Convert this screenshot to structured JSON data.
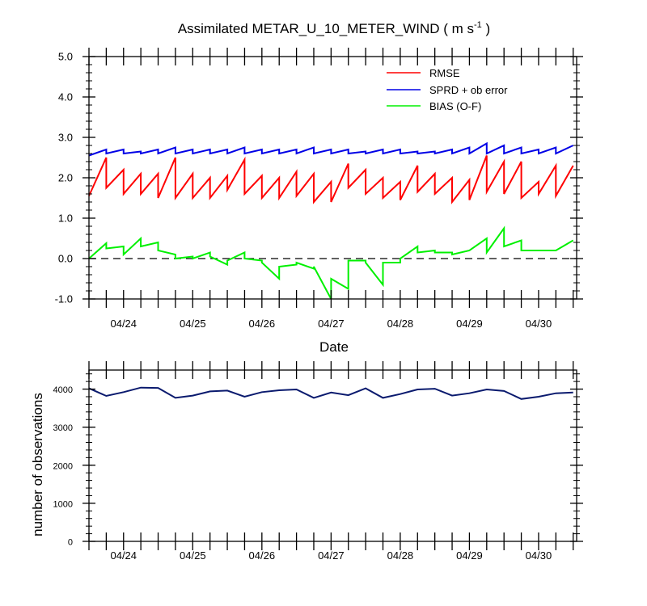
{
  "colors": {
    "rmse": "#ff0000",
    "spread": "#0000e6",
    "bias": "#00f000",
    "count": "#0a1a6e",
    "zero": "#000000"
  },
  "title": {
    "main": "Assimilated METAR_U_10_METER_WIND ( m s",
    "sup": "-1",
    "tail": " )"
  },
  "top_plot": {
    "xlabel": "Date"
  },
  "bottom_plot": {
    "ylabel": "number of observations"
  },
  "legend": {
    "position": "top-right",
    "entries": [
      {
        "key": "rmse",
        "label": "RMSE"
      },
      {
        "key": "spread",
        "label": "SPRD + ob error"
      },
      {
        "key": "bias",
        "label": "BIAS (O-F)"
      }
    ]
  },
  "chart_data": [
    {
      "type": "line",
      "title": "Assimilated METAR_U_10_METER_WIND ( m s-1 )",
      "xlabel": "Date",
      "ylabel": "",
      "xlim": [
        0,
        14.1
      ],
      "ylim": [
        -1.0,
        5.0
      ],
      "yticks": [
        "5.0",
        "4.0",
        "3.0",
        "2.0",
        "1.0",
        "0.0",
        "-1.0"
      ],
      "ytick_values": [
        5,
        4,
        3,
        2,
        1,
        0,
        -1
      ],
      "xtick_labels": [
        "04/24",
        "04/25",
        "04/26",
        "04/27",
        "04/28",
        "04/29",
        "04/30"
      ],
      "xtick_positions": [
        1,
        3,
        5,
        7,
        9,
        11,
        13
      ],
      "reference_line": {
        "y": 0,
        "style": "dashed"
      },
      "series": [
        {
          "name": "RMSE",
          "key": "rmse",
          "x": [
            0.0,
            0.5,
            0.5,
            1.0,
            1.0,
            1.5,
            1.5,
            2.0,
            2.0,
            2.5,
            2.5,
            3.0,
            3.0,
            3.5,
            3.5,
            4.0,
            4.0,
            4.5,
            4.5,
            5.0,
            5.0,
            5.5,
            5.5,
            6.0,
            6.0,
            6.5,
            6.5,
            7.0,
            7.0,
            7.5,
            7.5,
            8.0,
            8.0,
            8.5,
            8.5,
            9.0,
            9.0,
            9.5,
            9.5,
            10.0,
            10.0,
            10.5,
            10.5,
            11.0,
            11.0,
            11.5,
            11.5,
            12.0,
            12.0,
            12.5,
            12.5,
            13.0,
            13.0,
            13.5,
            13.5,
            14.0
          ],
          "y": [
            1.55,
            2.5,
            1.75,
            2.2,
            1.6,
            2.1,
            1.6,
            2.1,
            1.5,
            2.5,
            1.5,
            2.1,
            1.5,
            2.0,
            1.5,
            2.05,
            1.7,
            2.45,
            1.6,
            2.05,
            1.5,
            2.0,
            1.5,
            2.15,
            1.55,
            2.1,
            1.4,
            1.9,
            1.4,
            2.35,
            1.75,
            2.2,
            1.6,
            2.0,
            1.5,
            1.9,
            1.45,
            2.3,
            1.65,
            2.1,
            1.6,
            2.0,
            1.4,
            1.95,
            1.45,
            2.55,
            1.65,
            2.4,
            1.6,
            2.4,
            1.5,
            1.9,
            1.6,
            2.3,
            1.55,
            2.3
          ]
        },
        {
          "name": "SPRD + ob error",
          "key": "spread",
          "x": [
            0.0,
            0.5,
            0.5,
            1.0,
            1.0,
            1.5,
            1.5,
            2.0,
            2.0,
            2.5,
            2.5,
            3.0,
            3.0,
            3.5,
            3.5,
            4.0,
            4.0,
            4.5,
            4.5,
            5.0,
            5.0,
            5.5,
            5.5,
            6.0,
            6.0,
            6.5,
            6.5,
            7.0,
            7.0,
            7.5,
            7.5,
            8.0,
            8.0,
            8.5,
            8.5,
            9.0,
            9.0,
            9.5,
            9.5,
            10.0,
            10.0,
            10.5,
            10.5,
            11.0,
            11.0,
            11.5,
            11.5,
            12.0,
            12.0,
            12.5,
            12.5,
            13.0,
            13.0,
            13.5,
            13.5,
            14.0
          ],
          "y": [
            2.55,
            2.7,
            2.6,
            2.7,
            2.6,
            2.65,
            2.6,
            2.7,
            2.6,
            2.75,
            2.6,
            2.7,
            2.6,
            2.7,
            2.6,
            2.7,
            2.6,
            2.75,
            2.6,
            2.7,
            2.6,
            2.7,
            2.6,
            2.7,
            2.6,
            2.75,
            2.6,
            2.7,
            2.6,
            2.7,
            2.6,
            2.65,
            2.6,
            2.7,
            2.6,
            2.7,
            2.6,
            2.65,
            2.6,
            2.65,
            2.6,
            2.7,
            2.6,
            2.75,
            2.6,
            2.85,
            2.6,
            2.8,
            2.6,
            2.75,
            2.6,
            2.7,
            2.6,
            2.75,
            2.6,
            2.8
          ]
        },
        {
          "name": "BIAS (O-F)",
          "key": "bias",
          "x": [
            0.0,
            0.5,
            0.5,
            1.0,
            1.0,
            1.5,
            1.5,
            2.0,
            2.0,
            2.5,
            2.5,
            3.0,
            3.0,
            3.5,
            3.5,
            4.0,
            4.0,
            4.5,
            4.5,
            5.0,
            5.0,
            5.5,
            5.5,
            6.0,
            6.0,
            6.5,
            6.5,
            7.0,
            7.0,
            7.5,
            7.5,
            8.0,
            8.0,
            8.5,
            8.5,
            9.0,
            9.0,
            9.5,
            9.5,
            10.0,
            10.0,
            10.5,
            10.5,
            11.0,
            11.0,
            11.5,
            11.5,
            12.0,
            12.0,
            12.5,
            12.5,
            13.0,
            13.0,
            13.5,
            13.5,
            14.0
          ],
          "y": [
            0.0,
            0.38,
            0.25,
            0.3,
            0.1,
            0.5,
            0.3,
            0.4,
            0.2,
            0.1,
            0.0,
            0.05,
            0.0,
            0.15,
            0.05,
            -0.15,
            -0.05,
            0.15,
            0.0,
            -0.05,
            -0.1,
            -0.5,
            -0.2,
            -0.15,
            -0.1,
            -0.25,
            -0.2,
            -1.0,
            -0.5,
            -0.75,
            -0.05,
            -0.05,
            -0.1,
            -0.65,
            -0.1,
            -0.1,
            0.0,
            0.3,
            0.15,
            0.2,
            0.15,
            0.15,
            0.1,
            0.2,
            0.2,
            0.5,
            0.15,
            0.75,
            0.3,
            0.45,
            0.2,
            0.2,
            0.2,
            0.2,
            0.2,
            0.45
          ]
        }
      ]
    },
    {
      "type": "line",
      "title": "",
      "xlabel": "",
      "ylabel": "number of observations",
      "xlim": [
        0,
        14.1
      ],
      "ylim": [
        0,
        4500
      ],
      "yticks": [
        "4000",
        "3000",
        "2000",
        "1000",
        "0"
      ],
      "ytick_values": [
        4000,
        3000,
        2000,
        1000,
        0
      ],
      "xtick_labels": [
        "04/24",
        "04/25",
        "04/26",
        "04/27",
        "04/28",
        "04/29",
        "04/30"
      ],
      "xtick_positions": [
        1,
        3,
        5,
        7,
        9,
        11,
        13
      ],
      "series": [
        {
          "key": "count",
          "x": [
            0.0,
            0.5,
            1.0,
            1.5,
            2.0,
            2.5,
            3.0,
            3.5,
            4.0,
            4.5,
            5.0,
            5.5,
            6.0,
            6.5,
            7.0,
            7.5,
            8.0,
            8.5,
            9.0,
            9.5,
            10.0,
            10.5,
            11.0,
            11.5,
            12.0,
            12.5,
            13.0,
            13.5,
            14.0
          ],
          "y": [
            4020,
            3820,
            3920,
            4040,
            4030,
            3770,
            3830,
            3940,
            3960,
            3800,
            3920,
            3970,
            3990,
            3770,
            3910,
            3840,
            4020,
            3770,
            3870,
            3990,
            4010,
            3830,
            3890,
            3990,
            3950,
            3740,
            3800,
            3890,
            3910
          ]
        }
      ]
    }
  ]
}
